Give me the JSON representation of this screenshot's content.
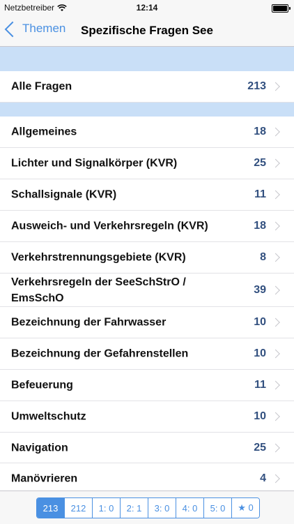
{
  "status_bar": {
    "carrier": "Netzbetreiber",
    "time": "12:14",
    "icons": [
      "wifi-icon",
      "battery-icon"
    ]
  },
  "nav": {
    "back_label": "Themen",
    "title": "Spezifische Fragen See"
  },
  "all_row": {
    "label": "Alle Fragen",
    "count": "213"
  },
  "topics": [
    {
      "label": "Allgemeines",
      "count": "18"
    },
    {
      "label": "Lichter und Signalkörper (KVR)",
      "count": "25"
    },
    {
      "label": "Schallsignale (KVR)",
      "count": "11"
    },
    {
      "label": "Ausweich- und Verkehrsregeln (KVR)",
      "count": "18"
    },
    {
      "label": "Verkehrstrennungsgebiete (KVR)",
      "count": "8"
    },
    {
      "label": "Verkehrsregeln der SeeSchStrO / EmsSchO",
      "count": "39"
    },
    {
      "label": "Bezeichnung der Fahrwasser",
      "count": "10"
    },
    {
      "label": "Bezeichnung der Gefahrenstellen",
      "count": "10"
    },
    {
      "label": "Befeuerung",
      "count": "11"
    },
    {
      "label": "Umweltschutz",
      "count": "10"
    },
    {
      "label": "Navigation",
      "count": "25"
    },
    {
      "label": "Manövrieren",
      "count": "4"
    }
  ],
  "segments": [
    "213",
    "212",
    "1: 0",
    "2: 1",
    "3: 0",
    "4: 0",
    "5: 0",
    "★ 0"
  ],
  "colors": {
    "accent": "#4a90e2",
    "count": "#32507f",
    "section_band": "#c9dff7"
  }
}
